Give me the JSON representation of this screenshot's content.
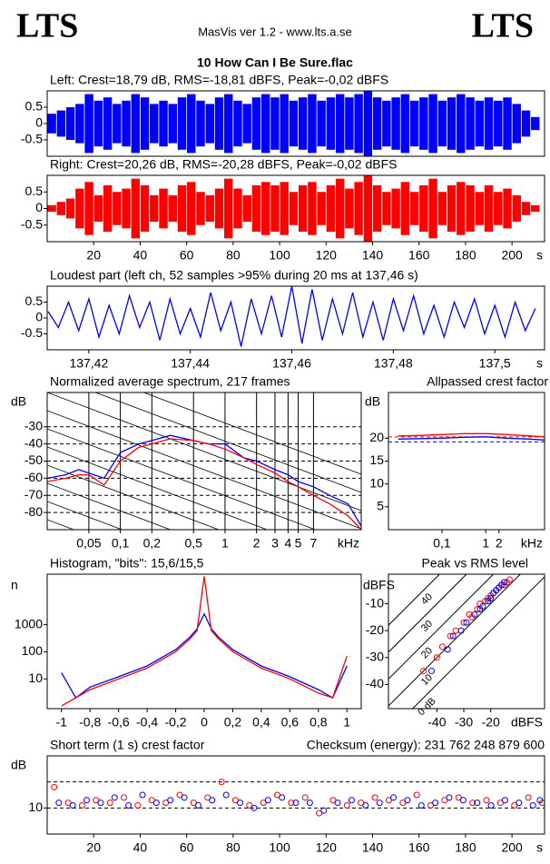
{
  "header": {
    "logo_left": "LTS",
    "logo_right": "LTS",
    "app": "MasVis ver 1.2 - www.lts.a.se",
    "file": "10 How Can I Be Sure.flac"
  },
  "chart_data": [
    {
      "type": "waveform",
      "title": "Left: Crest=18,79 dB, RMS=-18,81 dBFS, Peak=-0,02 dBFS",
      "x": [
        2,
        6,
        10,
        14,
        18,
        22,
        26,
        30,
        34,
        38,
        42,
        46,
        50,
        54,
        58,
        62,
        66,
        70,
        74,
        78,
        82,
        86,
        90,
        94,
        98,
        102,
        106,
        110,
        114,
        118,
        122,
        126,
        130,
        134,
        138,
        142,
        146,
        150,
        154,
        158,
        162,
        166,
        170,
        174,
        178,
        182,
        186,
        190,
        194,
        198,
        202,
        206,
        210
      ],
      "series": [
        {
          "color": "#0000ff",
          "values": [
            0.3,
            0.4,
            0.5,
            0.6,
            0.9,
            0.7,
            0.8,
            0.6,
            0.7,
            0.9,
            0.8,
            0.6,
            0.7,
            0.6,
            0.8,
            0.9,
            0.7,
            0.6,
            0.8,
            0.9,
            0.7,
            0.6,
            0.8,
            0.9,
            0.8,
            0.9,
            0.7,
            0.8,
            0.9,
            0.7,
            0.8,
            0.9,
            0.8,
            0.9,
            1,
            0.8,
            0.7,
            0.8,
            0.9,
            0.7,
            0.8,
            0.9,
            0.7,
            0.8,
            0.9,
            0.8,
            0.7,
            0.8,
            0.7,
            0.8,
            0.6,
            0.4,
            0.2
          ]
        }
      ],
      "xlim": [
        0,
        214
      ],
      "ylim": [
        -1,
        1
      ],
      "yticks": [
        0.5,
        0,
        -0.5
      ]
    },
    {
      "type": "waveform",
      "title": "Right: Crest=20,26 dB, RMS=-20,28 dBFS, Peak=-0,02 dBFS",
      "x": [
        2,
        6,
        10,
        14,
        18,
        22,
        26,
        30,
        34,
        38,
        42,
        46,
        50,
        54,
        58,
        62,
        66,
        70,
        74,
        78,
        82,
        86,
        90,
        94,
        98,
        102,
        106,
        110,
        114,
        118,
        122,
        126,
        130,
        134,
        138,
        142,
        146,
        150,
        154,
        158,
        162,
        166,
        170,
        174,
        178,
        182,
        186,
        190,
        194,
        198,
        202,
        206,
        210
      ],
      "series": [
        {
          "color": "#ff0000",
          "values": [
            0.1,
            0.2,
            0.3,
            0.6,
            0.8,
            0.4,
            0.7,
            0.5,
            0.6,
            0.9,
            0.7,
            0.4,
            0.6,
            0.4,
            0.7,
            0.8,
            0.5,
            0.4,
            0.6,
            0.9,
            0.6,
            0.4,
            0.7,
            0.8,
            0.7,
            0.8,
            0.5,
            0.7,
            0.8,
            0.5,
            0.7,
            0.9,
            0.6,
            0.8,
            1,
            0.7,
            0.5,
            0.6,
            0.8,
            0.5,
            0.7,
            0.9,
            0.5,
            0.7,
            0.8,
            0.7,
            0.5,
            0.7,
            0.5,
            0.6,
            0.4,
            0.2,
            0.1
          ]
        }
      ],
      "xlim": [
        0,
        214
      ],
      "ylim": [
        -1,
        1
      ],
      "yticks": [
        0.5,
        0,
        -0.5
      ],
      "xticks": [
        20,
        40,
        60,
        80,
        100,
        120,
        140,
        160,
        180,
        200
      ],
      "xlabel": "s"
    },
    {
      "type": "line",
      "title": "Loudest part (left  ch, 52 samples >95% during 20 ms at 137,46 s)",
      "x": [
        137.412,
        137.414,
        137.416,
        137.418,
        137.42,
        137.422,
        137.424,
        137.426,
        137.428,
        137.43,
        137.432,
        137.434,
        137.436,
        137.438,
        137.44,
        137.442,
        137.444,
        137.446,
        137.448,
        137.45,
        137.452,
        137.454,
        137.456,
        137.458,
        137.46,
        137.462,
        137.464,
        137.466,
        137.468,
        137.47,
        137.472,
        137.474,
        137.476,
        137.478,
        137.48,
        137.482,
        137.484,
        137.486,
        137.488,
        137.49,
        137.492,
        137.494,
        137.496,
        137.498,
        137.5,
        137.502,
        137.504,
        137.506,
        137.508
      ],
      "series": [
        {
          "color": "#0000ff",
          "values": [
            0.2,
            -0.3,
            0.5,
            -0.4,
            0.6,
            -0.6,
            0.4,
            -0.5,
            0.7,
            -0.3,
            0.5,
            -0.7,
            0.6,
            -0.5,
            0.3,
            -0.6,
            0.8,
            -0.4,
            0.5,
            -0.9,
            0.6,
            -0.5,
            0.7,
            -0.6,
            1,
            -0.8,
            0.9,
            -0.7,
            0.6,
            -0.5,
            0.8,
            -0.6,
            0.5,
            -0.7,
            0.6,
            -0.4,
            0.7,
            -0.5,
            0.4,
            -0.6,
            0.5,
            -0.3,
            0.6,
            -0.5,
            0.4,
            -0.6,
            0.5,
            -0.4,
            0.3
          ]
        }
      ],
      "xlim": [
        137.4118,
        137.5098
      ],
      "ylim": [
        -1,
        1
      ],
      "yticks": [
        0.5,
        0,
        -0.5
      ],
      "xticks": [
        {
          "value": 137.42,
          "label": "137,42"
        },
        {
          "value": 137.44,
          "label": "137,44"
        },
        {
          "value": 137.46,
          "label": "137,46"
        },
        {
          "value": 137.48,
          "label": "137,48"
        },
        {
          "value": 137.5,
          "label": "137,5"
        }
      ],
      "xlabel": "s"
    },
    {
      "type": "line",
      "title": "Normalized average spectrum, 217 frames",
      "ylabel": "dB",
      "xlabel": "kHz",
      "xscale": "log",
      "x": [
        0.02,
        0.03,
        0.04,
        0.05,
        0.07,
        0.1,
        0.15,
        0.2,
        0.3,
        0.5,
        0.7,
        1,
        1.5,
        2,
        3,
        4,
        5,
        7,
        10,
        15,
        20
      ],
      "series": [
        {
          "color": "#0000ff",
          "values": [
            -60,
            -58,
            -55,
            -57,
            -60,
            -45,
            -40,
            -38,
            -35,
            -38,
            -40,
            -40,
            -48,
            -50,
            -55,
            -58,
            -62,
            -65,
            -70,
            -75,
            -88
          ]
        },
        {
          "color": "#ff0000",
          "values": [
            -62,
            -60,
            -58,
            -58,
            -64,
            -50,
            -42,
            -40,
            -37,
            -38,
            -40,
            -43,
            -48,
            -52,
            -57,
            -62,
            -65,
            -70,
            -75,
            -82,
            -90
          ]
        }
      ],
      "xlim": [
        0.02,
        20
      ],
      "ylim": [
        -90,
        -10
      ],
      "yticks": [
        -30,
        -40,
        -50,
        -60,
        -70,
        -80
      ],
      "grid": "dashed",
      "xgrid": true,
      "xticks": [
        {
          "value": 0.05,
          "label": "0,05"
        },
        {
          "value": 0.1,
          "label": "0,1"
        },
        {
          "value": 0.2,
          "label": "0,2"
        },
        {
          "value": 0.5,
          "label": "0,5"
        },
        1,
        2,
        3,
        4,
        5,
        7
      ]
    },
    {
      "type": "line",
      "title": "Allpassed crest factor",
      "ylabel": "dB",
      "xlabel": "kHz",
      "xscale": "log",
      "x": [
        0.01,
        0.03,
        0.1,
        0.3,
        1,
        3,
        10,
        22
      ],
      "series": [
        {
          "color": "#ff0000",
          "values": [
            20.5,
            20.6,
            20.8,
            21,
            21,
            20.8,
            20.5,
            20.3
          ]
        },
        {
          "color": "#0000ff",
          "values": [
            19.8,
            19.9,
            20,
            20.2,
            20.3,
            20,
            19.8,
            19.6
          ]
        }
      ],
      "dashed_lines": [
        {
          "value": 19.2,
          "color": "#0000ff"
        },
        {
          "value": 20.3,
          "color": "#ff0000"
        }
      ],
      "xlim": [
        0.006,
        22
      ],
      "ylim": [
        0,
        30
      ],
      "yticks": [
        20,
        15,
        10,
        5
      ],
      "xticks": [
        {
          "value": 0.1,
          "label": "0,1"
        },
        1,
        2
      ]
    },
    {
      "type": "line",
      "title": "Histogram, \"bits\": 15,6/15,5",
      "ylabel": "n",
      "yscale": "log",
      "x": [
        -1,
        -0.9,
        -0.8,
        -0.6,
        -0.4,
        -0.2,
        -0.1,
        -0.05,
        0,
        0.05,
        0.1,
        0.2,
        0.4,
        0.6,
        0.8,
        0.9,
        1
      ],
      "series": [
        {
          "color": "#0000ff",
          "values": [
            17,
            2,
            5,
            12,
            30,
            120,
            350,
            700,
            2500,
            700,
            350,
            120,
            30,
            12,
            4,
            2,
            30
          ]
        },
        {
          "color": "#ff0000",
          "values": [
            1,
            2,
            4,
            10,
            25,
            100,
            300,
            600,
            60000,
            600,
            300,
            100,
            25,
            10,
            3,
            2,
            70
          ]
        }
      ],
      "xlim": [
        -1.1,
        1.1
      ],
      "ylim": [
        0.8,
        73000
      ],
      "yticks": [
        1000,
        100,
        10
      ],
      "xticks": [
        -1,
        {
          "value": -0.8,
          "label": "-0,8"
        },
        {
          "value": -0.6,
          "label": "-0,6"
        },
        {
          "value": -0.4,
          "label": "-0,4"
        },
        {
          "value": -0.2,
          "label": "-0,2"
        },
        0,
        {
          "value": 0.2,
          "label": "0,2"
        },
        {
          "value": 0.4,
          "label": "0,4"
        },
        {
          "value": 0.6,
          "label": "0,6"
        },
        {
          "value": 0.8,
          "label": "0,8"
        },
        1
      ]
    },
    {
      "type": "scatter",
      "title": "Peak vs RMS level",
      "ylabel": "dBFS",
      "xlabel": "dBFS",
      "series": [
        {
          "color": "#ff0000",
          "x": [
            -45,
            -40,
            -38,
            -35,
            -33,
            -30,
            -28,
            -27,
            -25,
            -24,
            -22,
            -21,
            -20,
            -19,
            -18,
            -17,
            -16,
            -15,
            -14,
            -13
          ],
          "values": [
            -35,
            -30,
            -26,
            -22,
            -20,
            -17,
            -14,
            -15,
            -12,
            -10,
            -9,
            -8,
            -7,
            -6,
            -5,
            -4,
            -3,
            -3,
            -2,
            -1
          ]
        },
        {
          "color": "#0000ff",
          "x": [
            -42,
            -36,
            -34,
            -31,
            -29,
            -26,
            -24,
            -23,
            -21,
            -20,
            -19,
            -18,
            -17,
            -16,
            -15
          ],
          "values": [
            -35,
            -27,
            -22,
            -20,
            -17,
            -14,
            -12,
            -11,
            -9,
            -8,
            -6,
            -5,
            -4,
            -3,
            -2
          ]
        }
      ],
      "diagonals": [
        {
          "value": 0,
          "label": "0 dB"
        },
        {
          "value": 10,
          "label": "10"
        },
        {
          "value": 20,
          "label": "20"
        },
        {
          "value": 30,
          "label": "30"
        },
        {
          "value": 40,
          "label": "40"
        }
      ],
      "xlim": [
        -58,
        0
      ],
      "ylim": [
        -49,
        1
      ],
      "yticks": [
        -10,
        -20,
        -30,
        -40
      ],
      "xticks": [
        -40,
        -30,
        -20
      ]
    },
    {
      "type": "scatter",
      "title": "Short term (1 s) crest factor",
      "annotation": "Checksum (energy):  231 762 248 879 600",
      "ylabel": "dB",
      "xlabel": "s",
      "series": [
        {
          "color": "#ff0000",
          "x": [
            3,
            9,
            15,
            21,
            27,
            33,
            39,
            45,
            51,
            57,
            63,
            69,
            75,
            81,
            87,
            93,
            99,
            105,
            111,
            117,
            123,
            129,
            135,
            141,
            147,
            153,
            159,
            165,
            171,
            177,
            183,
            189,
            195,
            201,
            207,
            213
          ],
          "values": [
            18,
            12,
            11,
            13,
            12,
            14,
            11,
            13,
            12,
            15,
            12,
            14,
            20,
            13,
            11,
            12,
            15,
            12,
            14,
            8,
            13,
            11,
            12,
            14,
            13,
            12,
            15,
            11,
            13,
            14,
            12,
            13,
            12,
            11,
            14,
            12
          ]
        },
        {
          "color": "#0000ff",
          "x": [
            5,
            11,
            17,
            23,
            29,
            35,
            41,
            47,
            53,
            59,
            65,
            71,
            77,
            83,
            89,
            95,
            101,
            107,
            113,
            119,
            125,
            131,
            137,
            143,
            149,
            155,
            161,
            167,
            173,
            179,
            185,
            191,
            197,
            203,
            209,
            212
          ],
          "values": [
            12,
            11,
            13,
            12,
            14,
            11,
            15,
            12,
            13,
            14,
            11,
            13,
            15,
            12,
            10,
            13,
            14,
            12,
            12,
            9,
            12,
            13,
            11,
            12,
            14,
            13,
            11,
            12,
            14,
            13,
            12,
            11,
            13,
            12,
            11,
            13
          ]
        }
      ],
      "dashed_lines": [
        {
          "value": 20,
          "color": "#000000"
        }
      ],
      "xlim": [
        0,
        214
      ],
      "ylim": [
        0,
        30
      ],
      "yticks": [
        10
      ],
      "grid": "dashed",
      "xticks": [
        20,
        40,
        60,
        80,
        100,
        120,
        140,
        160,
        180,
        200
      ]
    }
  ]
}
